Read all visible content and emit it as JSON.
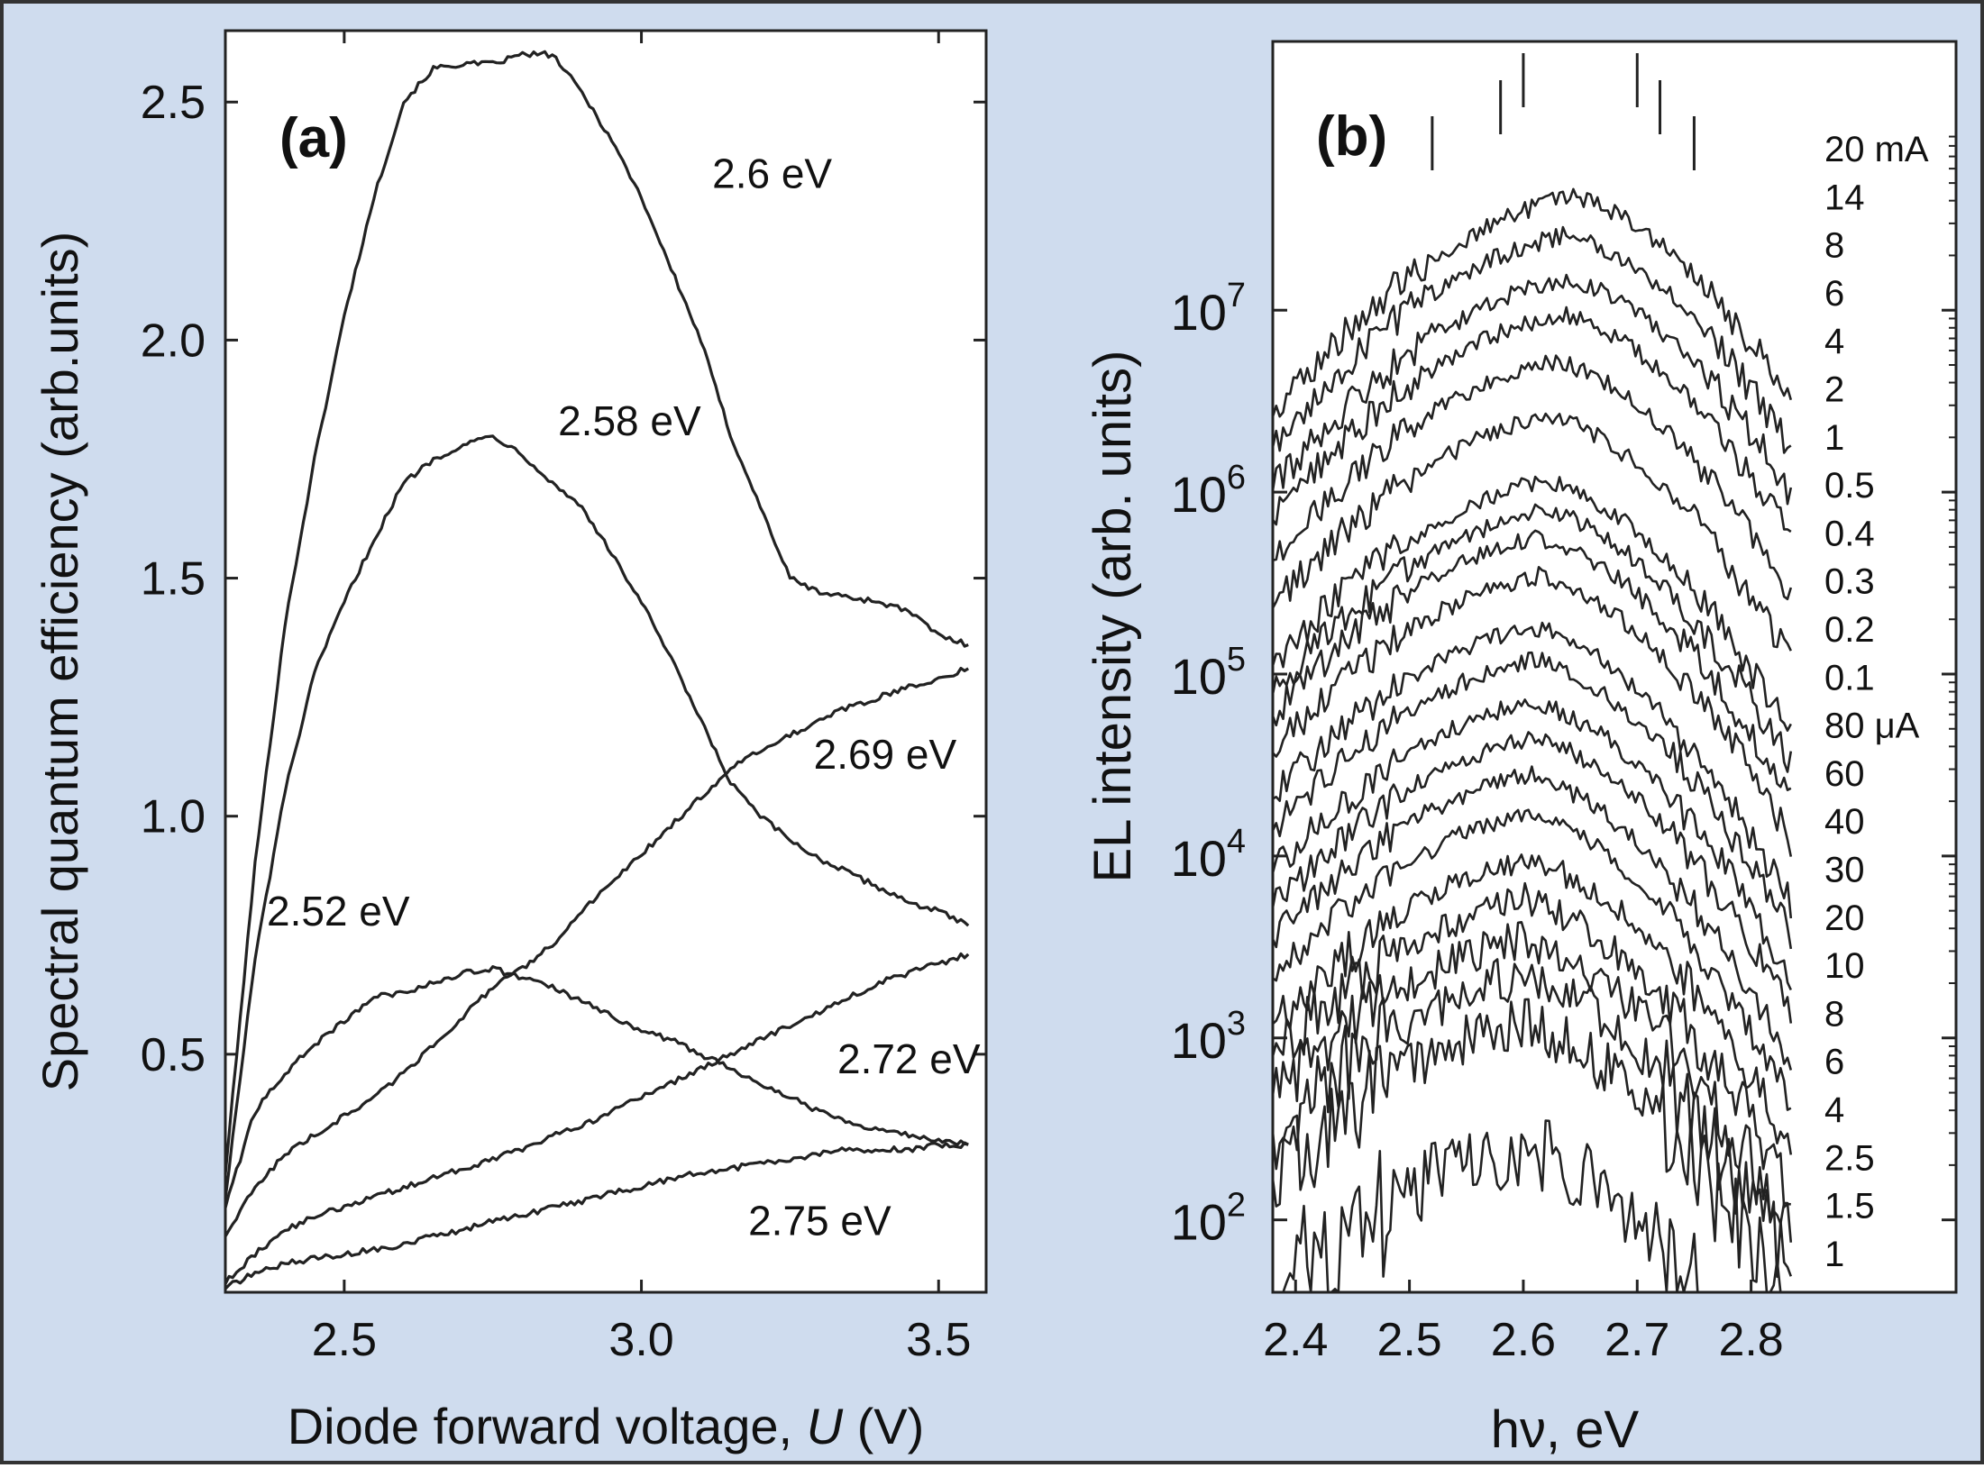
{
  "colors": {
    "background": "#cfdcee",
    "plot_background": "#ffffff",
    "line": "#222222",
    "frame": "#333333"
  },
  "chart_data": [
    {
      "panel": "(a)",
      "type": "line",
      "xlabel_prefix": "Diode forward voltage, ",
      "xlabel_italic": "U",
      "xlabel_suffix": " (V)",
      "ylabel": "Spectral quantum efficiency (arb.units)",
      "xlim": [
        2.3,
        3.58
      ],
      "ylim": [
        0,
        2.65
      ],
      "xticks": [
        2.5,
        3.0,
        3.5
      ],
      "xtick_labels": [
        "2.5",
        "3.0",
        "3.5"
      ],
      "yticks": [
        0.5,
        1.0,
        1.5,
        2.0,
        2.5
      ],
      "ytick_labels": [
        "0.5",
        "1.0",
        "1.5",
        "2.0",
        "2.5"
      ],
      "grid": false,
      "series": [
        {
          "name": "2.6 eV",
          "x": [
            2.3,
            2.35,
            2.4,
            2.45,
            2.5,
            2.55,
            2.6,
            2.65,
            2.7,
            2.75,
            2.8,
            2.85,
            2.9,
            2.95,
            3.0,
            3.05,
            3.1,
            3.15,
            3.2,
            3.25,
            3.3,
            3.35,
            3.4,
            3.45,
            3.5,
            3.55
          ],
          "y": [
            0.25,
            0.9,
            1.4,
            1.75,
            2.05,
            2.3,
            2.5,
            2.57,
            2.58,
            2.58,
            2.6,
            2.6,
            2.52,
            2.42,
            2.3,
            2.15,
            2.0,
            1.8,
            1.65,
            1.5,
            1.47,
            1.46,
            1.45,
            1.43,
            1.38,
            1.36
          ]
        },
        {
          "name": "2.58 eV",
          "x": [
            2.3,
            2.35,
            2.4,
            2.45,
            2.5,
            2.55,
            2.6,
            2.65,
            2.7,
            2.75,
            2.8,
            2.85,
            2.9,
            2.95,
            3.0,
            3.05,
            3.1,
            3.15,
            3.2,
            3.25,
            3.3,
            3.35,
            3.4,
            3.45,
            3.5,
            3.55
          ],
          "y": [
            0.2,
            0.7,
            1.05,
            1.3,
            1.45,
            1.58,
            1.7,
            1.75,
            1.78,
            1.8,
            1.76,
            1.7,
            1.65,
            1.55,
            1.45,
            1.33,
            1.2,
            1.07,
            1.0,
            0.95,
            0.91,
            0.88,
            0.85,
            0.82,
            0.8,
            0.77
          ]
        },
        {
          "name": "2.52 eV",
          "x": [
            2.3,
            2.35,
            2.4,
            2.45,
            2.5,
            2.55,
            2.6,
            2.65,
            2.7,
            2.75,
            2.8,
            2.85,
            2.9,
            2.95,
            3.0,
            3.05,
            3.1,
            3.15,
            3.2,
            3.25,
            3.3,
            3.35,
            3.4,
            3.45,
            3.5,
            3.55
          ],
          "y": [
            0.18,
            0.38,
            0.46,
            0.52,
            0.57,
            0.62,
            0.63,
            0.65,
            0.67,
            0.68,
            0.66,
            0.64,
            0.61,
            0.58,
            0.55,
            0.53,
            0.5,
            0.47,
            0.44,
            0.41,
            0.38,
            0.36,
            0.34,
            0.33,
            0.32,
            0.31
          ]
        },
        {
          "name": "2.69 eV",
          "x": [
            2.3,
            2.35,
            2.4,
            2.45,
            2.5,
            2.55,
            2.6,
            2.65,
            2.7,
            2.75,
            2.8,
            2.85,
            2.9,
            2.95,
            3.0,
            3.05,
            3.1,
            3.15,
            3.2,
            3.25,
            3.3,
            3.35,
            3.4,
            3.45,
            3.5,
            3.55
          ],
          "y": [
            0.12,
            0.22,
            0.29,
            0.33,
            0.37,
            0.41,
            0.46,
            0.52,
            0.58,
            0.64,
            0.68,
            0.73,
            0.8,
            0.86,
            0.92,
            0.98,
            1.04,
            1.1,
            1.14,
            1.17,
            1.2,
            1.23,
            1.25,
            1.27,
            1.29,
            1.31
          ]
        },
        {
          "name": "2.72 eV",
          "x": [
            2.3,
            2.35,
            2.4,
            2.45,
            2.5,
            2.55,
            2.6,
            2.65,
            2.7,
            2.75,
            2.8,
            2.85,
            2.9,
            2.95,
            3.0,
            3.05,
            3.1,
            3.15,
            3.2,
            3.25,
            3.3,
            3.35,
            3.4,
            3.45,
            3.5,
            3.55
          ],
          "y": [
            0.02,
            0.08,
            0.13,
            0.16,
            0.18,
            0.2,
            0.22,
            0.24,
            0.26,
            0.28,
            0.3,
            0.33,
            0.35,
            0.38,
            0.41,
            0.44,
            0.47,
            0.5,
            0.53,
            0.56,
            0.59,
            0.62,
            0.65,
            0.67,
            0.69,
            0.71
          ]
        },
        {
          "name": "2.75 eV",
          "x": [
            2.3,
            2.35,
            2.4,
            2.45,
            2.5,
            2.55,
            2.6,
            2.65,
            2.7,
            2.75,
            2.8,
            2.85,
            2.9,
            2.95,
            3.0,
            3.05,
            3.1,
            3.15,
            3.2,
            3.25,
            3.3,
            3.35,
            3.4,
            3.45,
            3.5,
            3.55
          ],
          "y": [
            0.01,
            0.04,
            0.06,
            0.07,
            0.08,
            0.09,
            0.1,
            0.12,
            0.13,
            0.15,
            0.16,
            0.18,
            0.19,
            0.21,
            0.22,
            0.24,
            0.25,
            0.26,
            0.27,
            0.28,
            0.29,
            0.3,
            0.3,
            0.3,
            0.31,
            0.31
          ]
        }
      ],
      "annotations": [
        {
          "text": "2.6 eV",
          "x": 3.22,
          "y": 2.32
        },
        {
          "text": "2.58 eV",
          "x": 2.98,
          "y": 1.8
        },
        {
          "text": "2.52 eV",
          "x": 2.49,
          "y": 0.77
        },
        {
          "text": "2.69 eV",
          "x": 3.41,
          "y": 1.1
        },
        {
          "text": "2.72 eV",
          "x": 3.45,
          "y": 0.46
        },
        {
          "text": "2.75 eV",
          "x": 3.3,
          "y": 0.12
        }
      ]
    },
    {
      "panel": "(b)",
      "type": "line",
      "xlabel": "hν, eV",
      "ylabel": "EL intensity (arb. units)",
      "yscale": "log",
      "xlim": [
        2.38,
        2.98
      ],
      "ylim": [
        40,
        300000000
      ],
      "xticks": [
        2.4,
        2.5,
        2.6,
        2.7,
        2.8
      ],
      "xtick_labels": [
        "2.4",
        "2.5",
        "2.6",
        "2.7",
        "2.8"
      ],
      "ytick_base": "10",
      "ytick_exponents": [
        "2",
        "3",
        "4",
        "5",
        "6",
        "7"
      ],
      "grid": false,
      "legend_position": "right",
      "marker_ticks_x": [
        2.52,
        2.58,
        2.6,
        2.7,
        2.72,
        2.75
      ],
      "x_range": [
        2.38,
        2.835
      ],
      "series": [
        {
          "name": "20 mA",
          "peak": 42000000,
          "peak_x": 2.645
        },
        {
          "name": "14",
          "peak": 26000000,
          "peak_x": 2.64
        },
        {
          "name": "8",
          "peak": 15000000,
          "peak_x": 2.64
        },
        {
          "name": "6",
          "peak": 9500000,
          "peak_x": 2.635
        },
        {
          "name": "4",
          "peak": 5200000,
          "peak_x": 2.63
        },
        {
          "name": "2",
          "peak": 2600000,
          "peak_x": 2.625
        },
        {
          "name": "1",
          "peak": 1150000,
          "peak_x": 2.62
        },
        {
          "name": "0.5",
          "peak": 800000,
          "peak_x": 2.62
        },
        {
          "name": "0.4",
          "peak": 560000,
          "peak_x": 2.615
        },
        {
          "name": "0.3",
          "peak": 350000,
          "peak_x": 2.615
        },
        {
          "name": "0.2",
          "peak": 180000,
          "peak_x": 2.61
        },
        {
          "name": "0.1",
          "peak": 120000,
          "peak_x": 2.61
        },
        {
          "name": "80 μA",
          "peak": 70000,
          "peak_x": 2.61
        },
        {
          "name": "60",
          "peak": 45000,
          "peak_x": 2.61
        },
        {
          "name": "40",
          "peak": 28000,
          "peak_x": 2.605
        },
        {
          "name": "30",
          "peak": 17000,
          "peak_x": 2.605
        },
        {
          "name": "20",
          "peak": 9500,
          "peak_x": 2.605
        },
        {
          "name": "10",
          "peak": 5800,
          "peak_x": 2.6
        },
        {
          "name": "8",
          "peak": 3500,
          "peak_x": 2.6
        },
        {
          "name": "6",
          "peak": 2200,
          "peak_x": 2.6
        },
        {
          "name": "4",
          "peak": 1200,
          "peak_x": 2.6
        },
        {
          "name": "2.5",
          "peak": 250,
          "peak_x": 2.6
        }
      ],
      "legend_extra": [
        "1.5",
        "1"
      ]
    }
  ]
}
